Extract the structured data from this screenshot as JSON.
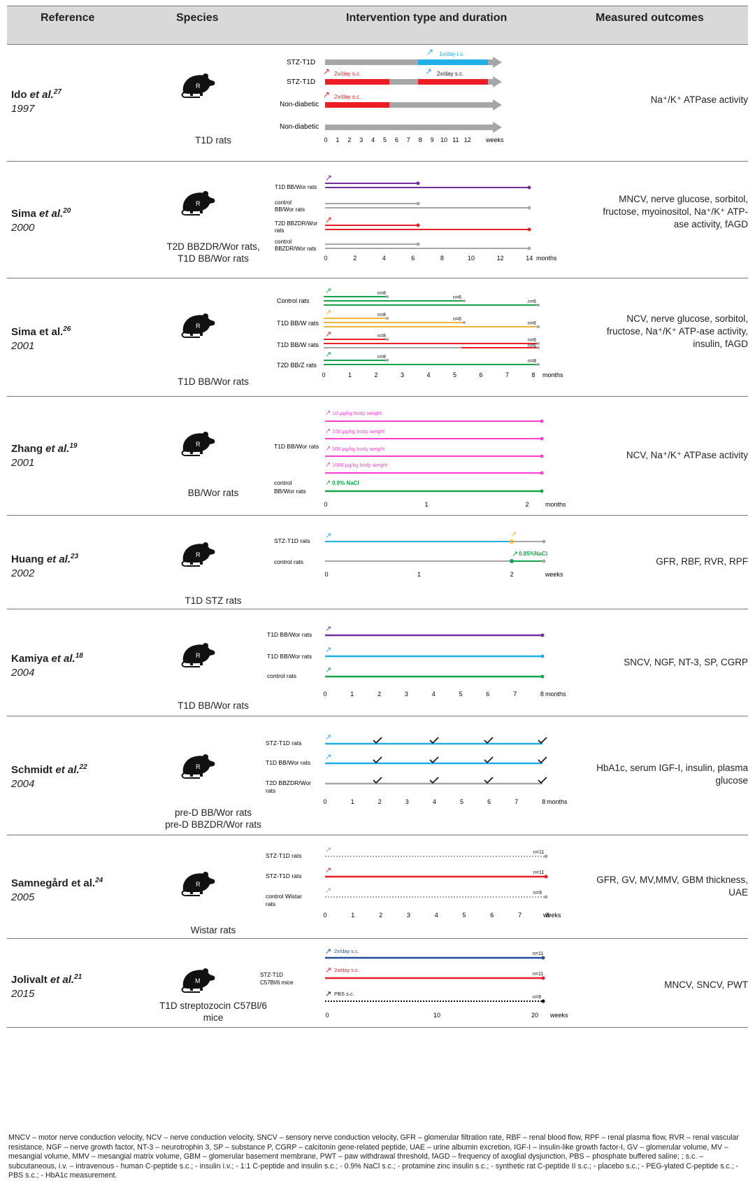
{
  "header": {
    "reference": "Reference",
    "species": "Species",
    "intervention": "Intervention type and duration",
    "outcomes": "Measured outcomes"
  },
  "icon_letters": {
    "rat": "R",
    "mouse": "M"
  },
  "studies": [
    {
      "author": "Ido",
      "etal": " et al.",
      "ref": "27",
      "year": "1997",
      "species": [
        "T1D rats"
      ],
      "outcomes": "Na⁺/K⁺ ATPase activity",
      "axis": {
        "ticks": [
          "0",
          "1",
          "2",
          "3",
          "4",
          "5",
          "6",
          "7",
          "8",
          "9",
          "10",
          "11",
          "12"
        ],
        "unit": "weeks"
      },
      "tracks": [
        {
          "label": "STZ-T1D",
          "note": "1x/day i.v."
        },
        {
          "label": "STZ-T1D",
          "note": "2x/day s.c.",
          "note2": "2x/day s.c."
        },
        {
          "label": "Non-diabetic",
          "note": "2x/day s.c."
        },
        {
          "label": "Non-diabetic"
        }
      ]
    },
    {
      "author": "Sima",
      "etal": " et al.",
      "ref": "20",
      "year": "2000",
      "species": [
        "T2D BBZDR/Wor rats,",
        "T1D BB/Wor rats"
      ],
      "outcomes": "MNCV, nerve glucose, sorbitol, fructose, myoinositol, Na⁺/K⁺ ATP-ase activity, fAGD",
      "axis": {
        "ticks": [
          "0",
          "2",
          "4",
          "6",
          "8",
          "10",
          "12",
          "14"
        ],
        "unit": "months"
      },
      "tracks": [
        {
          "label": "T1D BB/Wor rats"
        },
        {
          "label": "control",
          "label2": "BB/Wor rats"
        },
        {
          "label": "T2D BBZDR/Wor",
          "label2": "rats"
        },
        {
          "label": "control",
          "label2": "BBZDR/Wor rats"
        }
      ]
    },
    {
      "author": "Sima",
      "etal": " et al.",
      "ref": "26",
      "year": "2001",
      "species": [
        "T1D BB/Wor rats"
      ],
      "outcomes": "NCV, nerve glucose, sorbitol, fructose, Na⁺/K⁺ ATP-ase activity, insulin, fAGD",
      "axis": {
        "ticks": [
          "0",
          "1",
          "2",
          "3",
          "4",
          "5",
          "6",
          "7",
          "8"
        ],
        "unit": "months"
      },
      "tracks": [
        {
          "label": "Control rats",
          "n": [
            "n=8",
            "n=6",
            "n=6"
          ]
        },
        {
          "label": "T1D BB/W rats",
          "n": [
            "n=8",
            "n=6",
            "n=6"
          ]
        },
        {
          "label": "T1D BB/W rats",
          "n": [
            "n=8",
            "n=6",
            "n=6"
          ]
        },
        {
          "label": "T2D BB/Z rats",
          "n": [
            "n=8",
            "n=8"
          ]
        }
      ]
    },
    {
      "author": "Zhang",
      "etal": " et al.",
      "ref": "19",
      "year": "2001",
      "species": [
        "BB/Wor rats"
      ],
      "outcomes": "NCV, Na⁺/K⁺ ATPase activity",
      "axis": {
        "ticks": [
          "0",
          "1",
          "2"
        ],
        "unit": "months"
      },
      "tracks": [
        {
          "label": "T1D BB/Wor rats",
          "dose": [
            "10 μg/kg body weight",
            "100 μg/kg body weight",
            "500 μg/kg body weight",
            "1000 μg/kg body weight"
          ]
        },
        {
          "label": "control",
          "label2": "BB/Wor rats",
          "note": "0.9% NaCl"
        }
      ]
    },
    {
      "author": "Huang",
      "etal": " et al.",
      "ref": "23",
      "year": "2002",
      "species": [
        "T1D STZ rats"
      ],
      "outcomes": "GFR, RBF, RVR, RPF",
      "axis": {
        "ticks": [
          "0",
          "1",
          "2"
        ],
        "unit": "weeks"
      },
      "tracks": [
        {
          "label": "STZ-T1D rats"
        },
        {
          "label": "control rats",
          "note": "0.85%NaCl"
        }
      ]
    },
    {
      "author": "Kamiya",
      "etal": " et al.",
      "ref": "18",
      "year": "2004",
      "species": [
        "T1D BB/Wor rats"
      ],
      "outcomes": "SNCV, NGF, NT-3, SP, CGRP",
      "axis": {
        "ticks": [
          "0",
          "1",
          "2",
          "3",
          "4",
          "5",
          "6",
          "7",
          "8"
        ],
        "unit": "months"
      },
      "tracks": [
        {
          "label": "T1D BB/Wor rats"
        },
        {
          "label": "T1D BB/Wor rats"
        },
        {
          "label": "control rats"
        }
      ]
    },
    {
      "author": "Schmidt",
      "etal": " et al.",
      "ref": "22",
      "year": "2004",
      "species": [
        "pre-D BB/Wor rats",
        "pre-D BBZDR/Wor rats"
      ],
      "outcomes": "HbA1c, serum IGF-I, insulin, plasma glucose",
      "axis": {
        "ticks": [
          "0",
          "1",
          "2",
          "3",
          "4",
          "5",
          "6",
          "7",
          "8"
        ],
        "unit": "months"
      },
      "tracks": [
        {
          "label": "STZ-T1D rats"
        },
        {
          "label": "T1D BB/Wor rats"
        },
        {
          "label": "T2D BBZDR/Wor",
          "label2": "rats"
        }
      ]
    },
    {
      "author": "Samnegård",
      "etal": " et al.",
      "ref": "24",
      "year": "2005",
      "species": [
        "Wistar rats"
      ],
      "outcomes": "GFR, GV, MV,MMV, GBM thickness, UAE",
      "axis": {
        "ticks": [
          "0",
          "1",
          "2",
          "3",
          "4",
          "5",
          "6",
          "7",
          "8"
        ],
        "unit": "weeks"
      },
      "tracks": [
        {
          "label": "STZ-T1D rats",
          "n": [
            "n=11"
          ]
        },
        {
          "label": "STZ-T1D rats",
          "n": [
            "n=11"
          ]
        },
        {
          "label": "control Wistar",
          "label2": "rats",
          "n": [
            "n=9"
          ]
        }
      ]
    },
    {
      "author": "Jolivalt",
      "etal": " et al.",
      "ref": "21",
      "year": "2015",
      "species": [
        "T1D streptozocin C57Bl/6",
        "mice"
      ],
      "outcomes": "MNCV, SNCV, PWT",
      "axis": {
        "ticks": [
          "0",
          "10",
          "20"
        ],
        "unit": "weeks"
      },
      "tracks": [
        {
          "label": "STZ-T1D",
          "label2": "C57Bl/6 mice"
        },
        {
          "note": "2x/day s.c.",
          "n": [
            "n=11"
          ]
        },
        {
          "note": "2x/day s.c.",
          "n": [
            "n=11"
          ]
        },
        {
          "note": "PBS s.c.",
          "n": [
            "n=9"
          ]
        }
      ]
    }
  ],
  "footnote": "MNCV – motor nerve conduction velocity, NCV – nerve conduction velocity, SNCV – sensory nerve conduction velocity, GFR – glomerular filtration rate, RBF – renal blood flow, RPF – renal plasma flow, RVR – renal vascular resistance, NGF – nerve growth factor, NT-3 – neurotrophin 3, SP – substance P, CGRP – calcitonin gene-related peptide, UAE – urine albumin excretion, IGF-I – insulin-like growth factor-I, GV – glomerular volume, MV – mesangial volume, MMV – mesangial matrix volume, GBM – glomerular basement membrane, PWT – paw withdrawal threshold, fAGD – frequency of axoglial dysjunction, PBS – phosphate buffered saline; ; s.c. – subcutaneous, i.v. – intravenous    - human C-peptide s.c.;    - insulin i.v.;    - 1:1 C-peptide and insulin s.c.;    - 0.9% NaCl s.c.;    - protamine zinc insulin s.c.;    - synthetic rat C-peptide II s.c.;    - placebo s.c.;    - PEG-ylated C-peptide s.c.;    - PBS s.c.;    - HbA1c measurement.",
  "colors": {
    "grey": "#a6a6a6",
    "cyan": "#1eaee8",
    "red": "#ee1c24",
    "purple": "#7030a0",
    "green": "#16a64a",
    "orange": "#f5b335",
    "magenta": "#ff3fd0",
    "navy": "#1f4e9c",
    "black": "#111111"
  }
}
